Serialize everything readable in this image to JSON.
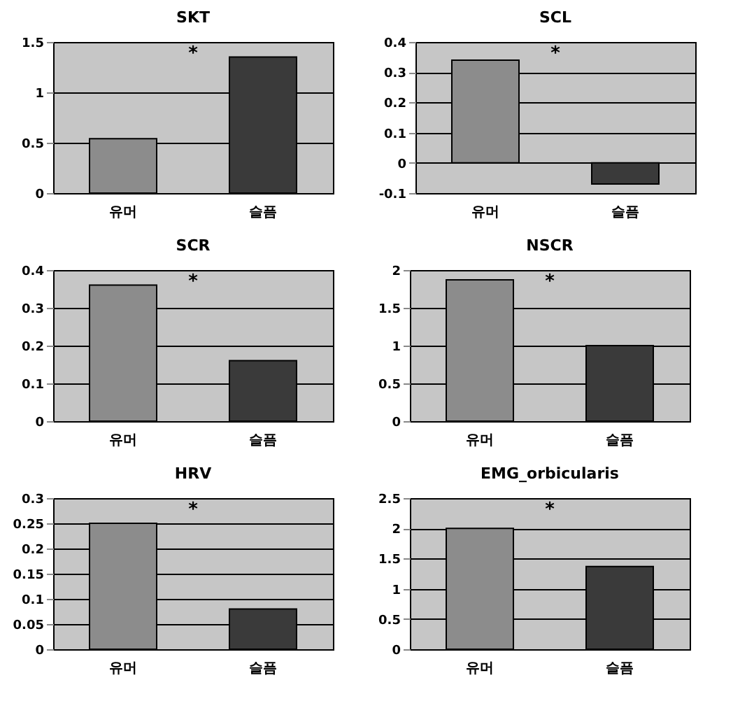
{
  "chart_data": [
    {
      "type": "bar",
      "title": "SKT",
      "categories": [
        "유머",
        "슬픔"
      ],
      "values": [
        0.54,
        1.35
      ],
      "colors": [
        "#8c8c8c",
        "#3a3a3a"
      ],
      "ylim": [
        0,
        1.5
      ],
      "yticks": [
        0,
        0.5,
        1,
        1.5
      ],
      "grid": "y",
      "annotations": [
        "*"
      ]
    },
    {
      "type": "bar",
      "title": "SCL",
      "categories": [
        "유머",
        "슬픔"
      ],
      "values": [
        0.34,
        -0.07
      ],
      "colors": [
        "#8c8c8c",
        "#3a3a3a"
      ],
      "ylim": [
        -0.1,
        0.4
      ],
      "yticks": [
        -0.1,
        0,
        0.1,
        0.2,
        0.3,
        0.4
      ],
      "grid": "y",
      "annotations": [
        "*"
      ]
    },
    {
      "type": "bar",
      "title": "SCR",
      "categories": [
        "유머",
        "슬픔"
      ],
      "values": [
        0.36,
        0.16
      ],
      "colors": [
        "#8c8c8c",
        "#3a3a3a"
      ],
      "ylim": [
        0,
        0.4
      ],
      "yticks": [
        0,
        0.1,
        0.2,
        0.3,
        0.4
      ],
      "grid": "y",
      "annotations": [
        "*"
      ]
    },
    {
      "type": "bar",
      "title": "NSCR",
      "categories": [
        "유머",
        "슬픔"
      ],
      "values": [
        1.87,
        1.0
      ],
      "colors": [
        "#8c8c8c",
        "#3a3a3a"
      ],
      "ylim": [
        0,
        2
      ],
      "yticks": [
        0,
        0.5,
        1,
        1.5,
        2
      ],
      "grid": "y",
      "annotations": [
        "*"
      ]
    },
    {
      "type": "bar",
      "title": "HRV",
      "categories": [
        "유머",
        "슬픔"
      ],
      "values": [
        0.25,
        0.08
      ],
      "colors": [
        "#8c8c8c",
        "#3a3a3a"
      ],
      "ylim": [
        0,
        0.3
      ],
      "yticks": [
        0,
        0.05,
        0.1,
        0.15,
        0.2,
        0.25,
        0.3
      ],
      "grid": "y",
      "annotations": [
        "*"
      ]
    },
    {
      "type": "bar",
      "title": "EMG_orbicularis",
      "categories": [
        "유머",
        "슬픔"
      ],
      "values": [
        2.0,
        1.37
      ],
      "colors": [
        "#8c8c8c",
        "#3a3a3a"
      ],
      "ylim": [
        0,
        2.5
      ],
      "yticks": [
        0,
        0.5,
        1,
        1.5,
        2,
        2.5
      ],
      "grid": "y",
      "annotations": [
        "*"
      ]
    }
  ]
}
